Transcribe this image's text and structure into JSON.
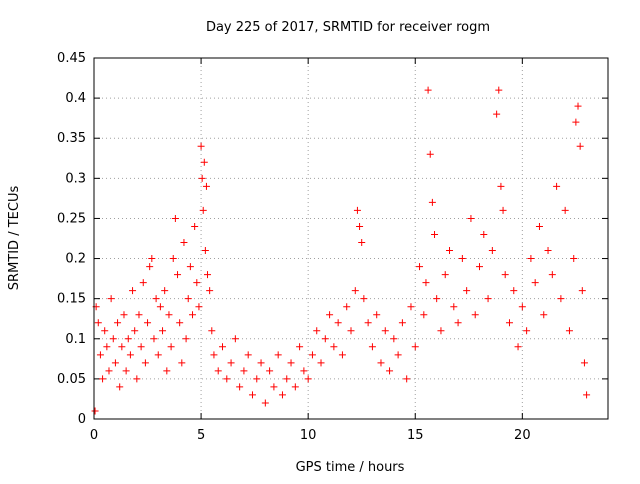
{
  "chart_data": {
    "type": "scatter",
    "title": "Day 225 of 2017, SRMTID for receiver rogm",
    "xlabel": "GPS time / hours",
    "ylabel": "SRMTID / TECUs",
    "xlim": [
      0,
      24
    ],
    "ylim": [
      0,
      0.45
    ],
    "x_ticks": [
      0,
      5,
      10,
      15,
      20
    ],
    "y_ticks": [
      0,
      0.05,
      0.1,
      0.15,
      0.2,
      0.25,
      0.3,
      0.35,
      0.4,
      0.45
    ],
    "x_tick_labels": [
      "0",
      "5",
      "10",
      "15",
      "20"
    ],
    "y_tick_labels": [
      "0",
      "0.05",
      "0.1",
      "0.15",
      "0.2",
      "0.25",
      "0.3",
      "0.35",
      "0.4",
      "0.45"
    ],
    "grid": true,
    "marker": "+",
    "color": "#ff0000",
    "series": [
      {
        "name": "SRMTID",
        "points": [
          [
            0.05,
            0.01
          ],
          [
            0.1,
            0.14
          ],
          [
            0.2,
            0.12
          ],
          [
            0.3,
            0.08
          ],
          [
            0.4,
            0.05
          ],
          [
            0.5,
            0.11
          ],
          [
            0.6,
            0.09
          ],
          [
            0.7,
            0.06
          ],
          [
            0.8,
            0.15
          ],
          [
            0.9,
            0.1
          ],
          [
            1.0,
            0.07
          ],
          [
            1.1,
            0.12
          ],
          [
            1.2,
            0.04
          ],
          [
            1.3,
            0.09
          ],
          [
            1.4,
            0.13
          ],
          [
            1.5,
            0.06
          ],
          [
            1.6,
            0.1
          ],
          [
            1.7,
            0.08
          ],
          [
            1.8,
            0.16
          ],
          [
            1.9,
            0.11
          ],
          [
            2.0,
            0.05
          ],
          [
            2.1,
            0.13
          ],
          [
            2.2,
            0.09
          ],
          [
            2.3,
            0.17
          ],
          [
            2.4,
            0.07
          ],
          [
            2.5,
            0.12
          ],
          [
            2.6,
            0.19
          ],
          [
            2.7,
            0.2
          ],
          [
            2.8,
            0.1
          ],
          [
            2.9,
            0.15
          ],
          [
            3.0,
            0.08
          ],
          [
            3.1,
            0.14
          ],
          [
            3.2,
            0.11
          ],
          [
            3.3,
            0.16
          ],
          [
            3.4,
            0.06
          ],
          [
            3.5,
            0.13
          ],
          [
            3.6,
            0.09
          ],
          [
            3.7,
            0.2
          ],
          [
            3.8,
            0.25
          ],
          [
            3.9,
            0.18
          ],
          [
            4.0,
            0.12
          ],
          [
            4.1,
            0.07
          ],
          [
            4.2,
            0.22
          ],
          [
            4.3,
            0.1
          ],
          [
            4.4,
            0.15
          ],
          [
            4.5,
            0.19
          ],
          [
            4.6,
            0.13
          ],
          [
            4.7,
            0.24
          ],
          [
            4.8,
            0.17
          ],
          [
            4.9,
            0.14
          ],
          [
            5.0,
            0.34
          ],
          [
            5.05,
            0.3
          ],
          [
            5.1,
            0.26
          ],
          [
            5.15,
            0.32
          ],
          [
            5.2,
            0.21
          ],
          [
            5.25,
            0.29
          ],
          [
            5.3,
            0.18
          ],
          [
            5.4,
            0.16
          ],
          [
            5.5,
            0.11
          ],
          [
            5.6,
            0.08
          ],
          [
            5.8,
            0.06
          ],
          [
            6.0,
            0.09
          ],
          [
            6.2,
            0.05
          ],
          [
            6.4,
            0.07
          ],
          [
            6.6,
            0.1
          ],
          [
            6.8,
            0.04
          ],
          [
            7.0,
            0.06
          ],
          [
            7.2,
            0.08
          ],
          [
            7.4,
            0.03
          ],
          [
            7.6,
            0.05
          ],
          [
            7.8,
            0.07
          ],
          [
            8.0,
            0.02
          ],
          [
            8.2,
            0.06
          ],
          [
            8.4,
            0.04
          ],
          [
            8.6,
            0.08
          ],
          [
            8.8,
            0.03
          ],
          [
            9.0,
            0.05
          ],
          [
            9.2,
            0.07
          ],
          [
            9.4,
            0.04
          ],
          [
            9.6,
            0.09
          ],
          [
            9.8,
            0.06
          ],
          [
            10.0,
            0.05
          ],
          [
            10.2,
            0.08
          ],
          [
            10.4,
            0.11
          ],
          [
            10.6,
            0.07
          ],
          [
            10.8,
            0.1
          ],
          [
            11.0,
            0.13
          ],
          [
            11.2,
            0.09
          ],
          [
            11.4,
            0.12
          ],
          [
            11.6,
            0.08
          ],
          [
            11.8,
            0.14
          ],
          [
            12.0,
            0.11
          ],
          [
            12.2,
            0.16
          ],
          [
            12.3,
            0.26
          ],
          [
            12.4,
            0.24
          ],
          [
            12.5,
            0.22
          ],
          [
            12.6,
            0.15
          ],
          [
            12.8,
            0.12
          ],
          [
            13.0,
            0.09
          ],
          [
            13.2,
            0.13
          ],
          [
            13.4,
            0.07
          ],
          [
            13.6,
            0.11
          ],
          [
            13.8,
            0.06
          ],
          [
            14.0,
            0.1
          ],
          [
            14.2,
            0.08
          ],
          [
            14.4,
            0.12
          ],
          [
            14.6,
            0.05
          ],
          [
            14.8,
            0.14
          ],
          [
            15.0,
            0.09
          ],
          [
            15.2,
            0.19
          ],
          [
            15.4,
            0.13
          ],
          [
            15.5,
            0.17
          ],
          [
            15.6,
            0.41
          ],
          [
            15.7,
            0.33
          ],
          [
            15.8,
            0.27
          ],
          [
            15.9,
            0.23
          ],
          [
            16.0,
            0.15
          ],
          [
            16.2,
            0.11
          ],
          [
            16.4,
            0.18
          ],
          [
            16.6,
            0.21
          ],
          [
            16.8,
            0.14
          ],
          [
            17.0,
            0.12
          ],
          [
            17.2,
            0.2
          ],
          [
            17.4,
            0.16
          ],
          [
            17.6,
            0.25
          ],
          [
            17.8,
            0.13
          ],
          [
            18.0,
            0.19
          ],
          [
            18.2,
            0.23
          ],
          [
            18.4,
            0.15
          ],
          [
            18.6,
            0.21
          ],
          [
            18.8,
            0.38
          ],
          [
            18.9,
            0.41
          ],
          [
            19.0,
            0.29
          ],
          [
            19.1,
            0.26
          ],
          [
            19.2,
            0.18
          ],
          [
            19.4,
            0.12
          ],
          [
            19.6,
            0.16
          ],
          [
            19.8,
            0.09
          ],
          [
            20.0,
            0.14
          ],
          [
            20.2,
            0.11
          ],
          [
            20.4,
            0.2
          ],
          [
            20.6,
            0.17
          ],
          [
            20.8,
            0.24
          ],
          [
            21.0,
            0.13
          ],
          [
            21.2,
            0.21
          ],
          [
            21.4,
            0.18
          ],
          [
            21.6,
            0.29
          ],
          [
            21.8,
            0.15
          ],
          [
            22.0,
            0.26
          ],
          [
            22.2,
            0.11
          ],
          [
            22.4,
            0.2
          ],
          [
            22.5,
            0.37
          ],
          [
            22.6,
            0.39
          ],
          [
            22.7,
            0.34
          ],
          [
            22.8,
            0.16
          ],
          [
            22.9,
            0.07
          ],
          [
            23.0,
            0.03
          ]
        ]
      }
    ]
  }
}
